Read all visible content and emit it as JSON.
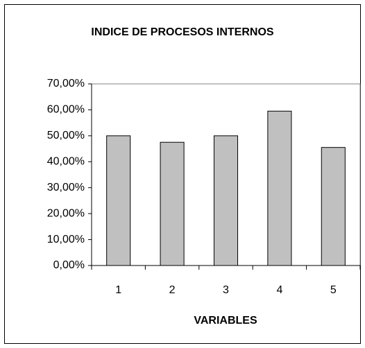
{
  "chart_data": {
    "type": "bar",
    "title": "INDICE DE PROCESOS INTERNOS",
    "x_label": "VARIABLES",
    "categories": [
      "1",
      "2",
      "3",
      "4",
      "5"
    ],
    "values": [
      50,
      47.5,
      50,
      59.5,
      45.5
    ],
    "color": "#c0c0c0",
    "ylim": [
      0,
      70
    ],
    "yticks": [
      {
        "value": 0,
        "label": "0,00%"
      },
      {
        "value": 10,
        "label": "10,00%"
      },
      {
        "value": 20,
        "label": "20,00%"
      },
      {
        "value": 30,
        "label": "30,00%"
      },
      {
        "value": 40,
        "label": "40,00%"
      },
      {
        "value": 50,
        "label": "50,00%"
      },
      {
        "value": 60,
        "label": "60,00%"
      },
      {
        "value": 70,
        "label": "70,00%"
      }
    ],
    "grid": false
  }
}
